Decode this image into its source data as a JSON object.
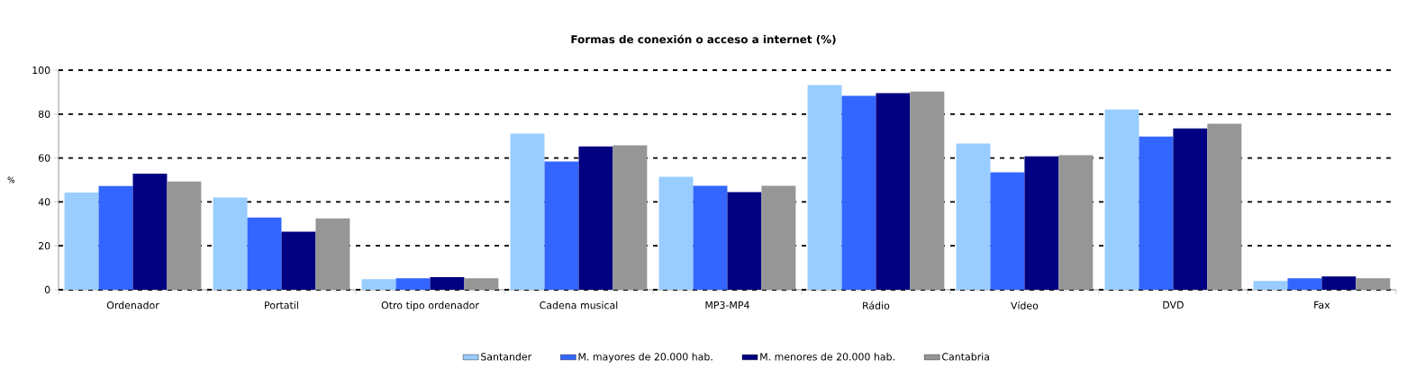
{
  "chart_data": {
    "type": "bar",
    "title": "Formas de conexión o acceso a internet (%)",
    "ylabel": "%",
    "categories": [
      "Ordenador",
      "Portatil",
      "Otro tipo ordenador",
      "Cadena musical",
      "MP3-MP4",
      "Rádio",
      "Vídeo",
      "DVD",
      "Fax"
    ],
    "series": [
      {
        "name": "Santander",
        "color": "#99ccff",
        "values": [
          44.3,
          42.0,
          4.8,
          71.1,
          51.4,
          93.2,
          66.6,
          82.1,
          4.0
        ]
      },
      {
        "name": "M. mayores de 20.000 hab.",
        "color": "#3366ff",
        "values": [
          47.2,
          32.9,
          5.2,
          58.4,
          47.3,
          88.3,
          53.5,
          69.8,
          5.2
        ]
      },
      {
        "name": "M. menores de 20.000 hab.",
        "color": "#000080",
        "values": [
          52.9,
          26.4,
          5.7,
          65.3,
          44.5,
          89.5,
          60.8,
          73.5,
          6.0
        ]
      },
      {
        "name": "Cantabria",
        "color": "#969696",
        "values": [
          49.3,
          32.5,
          5.2,
          65.8,
          47.3,
          90.3,
          61.3,
          75.6,
          5.2
        ]
      }
    ],
    "ylim": [
      0,
      100
    ],
    "yticks": [
      0,
      20,
      40,
      60,
      80,
      100
    ],
    "grid": "y",
    "legend": "bottom"
  }
}
